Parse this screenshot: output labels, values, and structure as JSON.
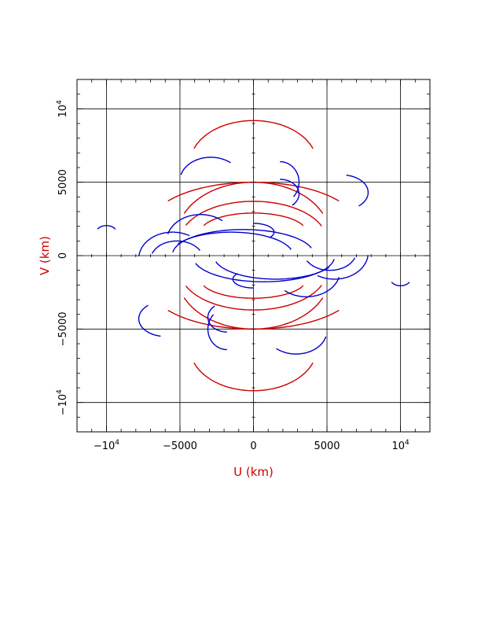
{
  "chart_data": {
    "type": "scatter",
    "title": "",
    "xlabel": "U (km)",
    "ylabel": "V (km)",
    "xlim": [
      -12000,
      12000
    ],
    "ylim": [
      -12000,
      12000
    ],
    "grid": true,
    "axis_label_color": "#cc0000",
    "x_ticks": [
      {
        "value": -10000,
        "base": "−10",
        "exp": "4"
      },
      {
        "value": -5000,
        "base": "−5000",
        "exp": ""
      },
      {
        "value": 0,
        "base": "0",
        "exp": ""
      },
      {
        "value": 5000,
        "base": "5000",
        "exp": ""
      },
      {
        "value": 10000,
        "base": "10",
        "exp": "4"
      }
    ],
    "y_ticks": [
      {
        "value": -10000,
        "base": "−10",
        "exp": "4"
      },
      {
        "value": -5000,
        "base": "−5000",
        "exp": ""
      },
      {
        "value": 0,
        "base": "0",
        "exp": ""
      },
      {
        "value": 5000,
        "base": "5000",
        "exp": ""
      },
      {
        "value": 10000,
        "base": "10",
        "exp": "4"
      }
    ],
    "series_colors": {
      "red": "#cc0000",
      "blue": "#0000cc"
    },
    "tracks": [
      {
        "color": "red",
        "cx": 0,
        "cy": 6300,
        "rx": 4300,
        "ry": 2900,
        "a1": 200,
        "a2": 340
      },
      {
        "color": "red",
        "cx": 0,
        "cy": 2000,
        "rx": 7100,
        "ry": 3000,
        "a1": 215,
        "a2": 325
      },
      {
        "color": "red",
        "cx": 0,
        "cy": 1300,
        "rx": 5200,
        "ry": 3700,
        "a1": 205,
        "a2": 335
      },
      {
        "color": "red",
        "cx": 0,
        "cy": 1000,
        "rx": 5000,
        "ry": 2700,
        "a1": 203,
        "a2": 338
      },
      {
        "color": "red",
        "cx": 0,
        "cy": 1600,
        "rx": 3600,
        "ry": 1300,
        "a1": 200,
        "a2": 340
      },
      {
        "color": "red",
        "cx": 0,
        "cy": -6300,
        "rx": 4300,
        "ry": 2900,
        "a1": 20,
        "a2": 160
      },
      {
        "color": "red",
        "cx": 0,
        "cy": -2000,
        "rx": 7100,
        "ry": 3000,
        "a1": 35,
        "a2": 145
      },
      {
        "color": "red",
        "cx": 0,
        "cy": -1300,
        "rx": 5200,
        "ry": 3700,
        "a1": 25,
        "a2": 155
      },
      {
        "color": "red",
        "cx": 0,
        "cy": -1000,
        "rx": 5000,
        "ry": 2700,
        "a1": 22,
        "a2": 157
      },
      {
        "color": "red",
        "cx": 0,
        "cy": -1600,
        "rx": 3600,
        "ry": 1300,
        "a1": 20,
        "a2": 160
      },
      {
        "color": "blue",
        "cx": -2900,
        "cy": 5100,
        "rx": 2100,
        "ry": 1600,
        "a1": 195,
        "a2": 310
      },
      {
        "color": "blue",
        "cx": -3600,
        "cy": 1000,
        "rx": 2300,
        "ry": 1800,
        "a1": 195,
        "a2": 310
      },
      {
        "color": "blue",
        "cx": -5500,
        "cy": -200,
        "rx": 2300,
        "ry": 1800,
        "a1": 185,
        "a2": 300
      },
      {
        "color": "blue",
        "cx": -5200,
        "cy": -300,
        "rx": 1800,
        "ry": 1300,
        "a1": 200,
        "a2": 330
      },
      {
        "color": "blue",
        "cx": -700,
        "cy": 80,
        "rx": 4800,
        "ry": 1700,
        "a1": 185,
        "a2": 345
      },
      {
        "color": "blue",
        "cx": -1500,
        "cy": 0,
        "rx": 4200,
        "ry": 1600,
        "a1": 210,
        "a2": 345
      },
      {
        "color": "blue",
        "cx": -10000,
        "cy": 1550,
        "rx": 700,
        "ry": 500,
        "a1": 210,
        "a2": 330
      },
      {
        "color": "blue",
        "cx": 1800,
        "cy": 5000,
        "rx": 1300,
        "ry": 1400,
        "a1": 270,
        "a2": 405
      },
      {
        "color": "blue",
        "cx": 1800,
        "cy": 4200,
        "rx": 1300,
        "ry": 1000,
        "a1": 270,
        "a2": 410
      },
      {
        "color": "blue",
        "cx": 6000,
        "cy": 4300,
        "rx": 1800,
        "ry": 1200,
        "a1": 280,
        "a2": 410
      },
      {
        "color": "blue",
        "cx": 0,
        "cy": 1600,
        "rx": 1400,
        "ry": 600,
        "a1": 270,
        "a2": 400
      },
      {
        "color": "blue",
        "cx": 2900,
        "cy": -5100,
        "rx": 2100,
        "ry": 1600,
        "a1": 15,
        "a2": 130
      },
      {
        "color": "blue",
        "cx": 3600,
        "cy": -1000,
        "rx": 2300,
        "ry": 1800,
        "a1": 15,
        "a2": 130
      },
      {
        "color": "blue",
        "cx": 5500,
        "cy": 200,
        "rx": 2300,
        "ry": 1800,
        "a1": 5,
        "a2": 120
      },
      {
        "color": "blue",
        "cx": 5200,
        "cy": 300,
        "rx": 1800,
        "ry": 1300,
        "a1": 20,
        "a2": 150
      },
      {
        "color": "blue",
        "cx": 700,
        "cy": -80,
        "rx": 4800,
        "ry": 1700,
        "a1": 5,
        "a2": 165
      },
      {
        "color": "blue",
        "cx": 1500,
        "cy": 0,
        "rx": 4200,
        "ry": 1600,
        "a1": 30,
        "a2": 165
      },
      {
        "color": "blue",
        "cx": 10000,
        "cy": -1550,
        "rx": 700,
        "ry": 500,
        "a1": 30,
        "a2": 150
      },
      {
        "color": "blue",
        "cx": -1800,
        "cy": -5000,
        "rx": 1300,
        "ry": 1400,
        "a1": 90,
        "a2": 225
      },
      {
        "color": "blue",
        "cx": -1800,
        "cy": -4200,
        "rx": 1300,
        "ry": 1000,
        "a1": 90,
        "a2": 230
      },
      {
        "color": "blue",
        "cx": -6000,
        "cy": -4300,
        "rx": 1800,
        "ry": 1200,
        "a1": 100,
        "a2": 230
      },
      {
        "color": "blue",
        "cx": 0,
        "cy": -1600,
        "rx": 1400,
        "ry": 600,
        "a1": 90,
        "a2": 220
      }
    ]
  }
}
